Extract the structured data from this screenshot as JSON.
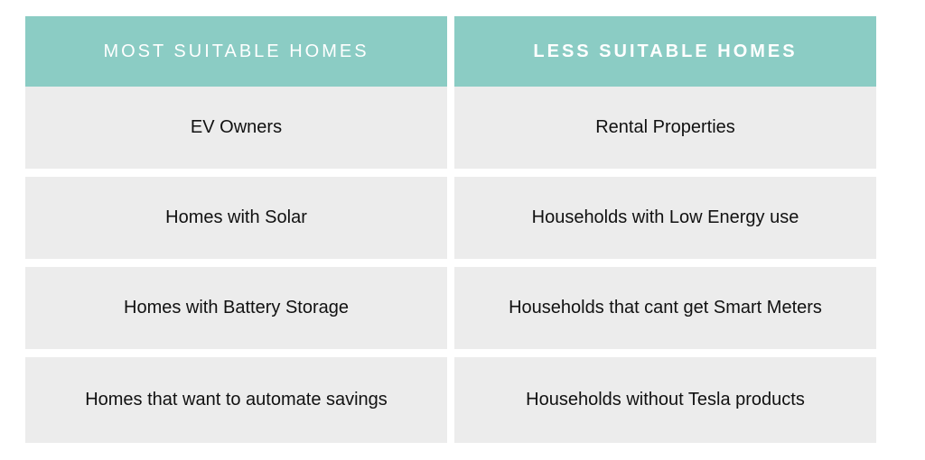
{
  "colors": {
    "header_background": "#8bccc4",
    "header_text": "#ffffff",
    "cell_background": "#ececec",
    "cell_text": "#111111",
    "page_background": "#ffffff"
  },
  "table": {
    "columns": [
      {
        "header": "MOST SUITABLE HOMES",
        "rows": [
          "EV Owners",
          "Homes with Solar",
          "Homes with Battery Storage",
          "Homes that want to automate savings"
        ]
      },
      {
        "header": "LESS SUITABLE HOMES",
        "rows": [
          "Rental Properties",
          "Households with Low Energy use",
          "Households that cant get Smart Meters",
          "Households without Tesla products"
        ]
      }
    ]
  },
  "chart_data": {
    "type": "table",
    "columns": [
      "MOST SUITABLE HOMES",
      "LESS SUITABLE HOMES"
    ],
    "rows": [
      [
        "EV Owners",
        "Rental Properties"
      ],
      [
        "Homes with Solar",
        "Households with Low Energy use"
      ],
      [
        "Homes with Battery Storage",
        "Households that cant get Smart Meters"
      ],
      [
        "Homes that want to automate savings",
        "Households without Tesla products"
      ]
    ],
    "title": "",
    "legend": "none",
    "grid": "off"
  }
}
